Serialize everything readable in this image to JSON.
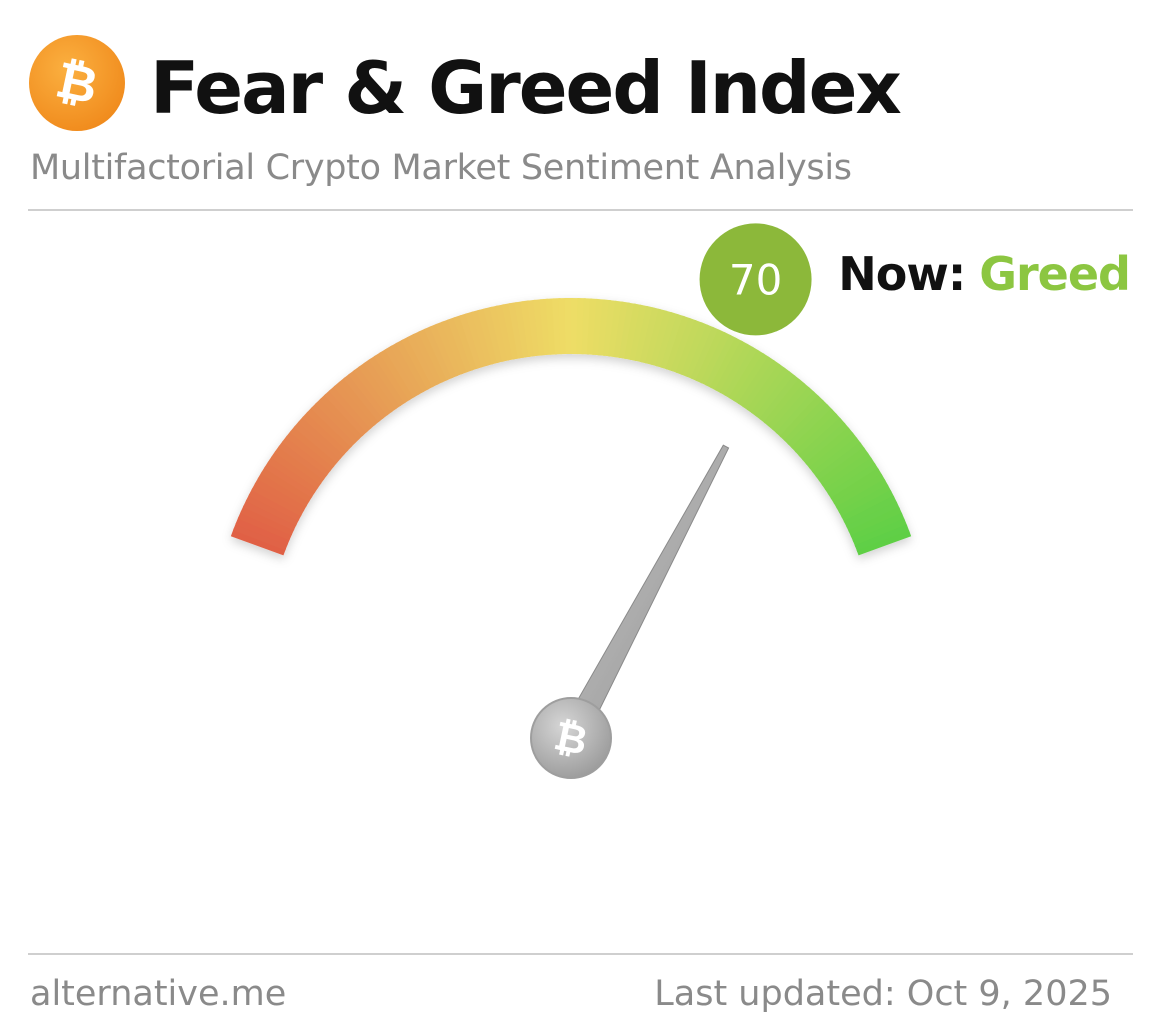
{
  "header": {
    "logo_icon": "bitcoin-icon",
    "logo_glyph": "₿",
    "title": "Fear & Greed Index",
    "subtitle": "Multifactorial Crypto Market Sentiment Analysis"
  },
  "status": {
    "now_label": "Now:",
    "now_value": "Greed",
    "now_color": "#8cc641"
  },
  "gauge": {
    "value": 70,
    "value_text": "70",
    "min": 0,
    "max": 100,
    "badge_color": "#8cb83a",
    "needle_icon": "bitcoin-icon",
    "needle_glyph": "₿",
    "colors": {
      "fear": "#e06045",
      "neutral": "#eedd66",
      "greed": "#5ecf45"
    }
  },
  "footer": {
    "source": "alternative.me",
    "last_updated": "Last updated: Oct 9, 2025"
  }
}
